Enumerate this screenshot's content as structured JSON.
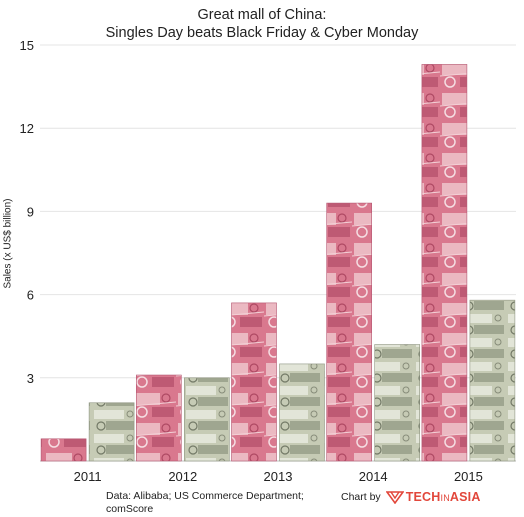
{
  "chart_data": {
    "type": "bar",
    "title_line1": "Great mall of China:",
    "title_line2": "Singles Day beats Black Friday & Cyber Monday",
    "ylabel": "Sales (x US$ billion)",
    "xlabel": "",
    "ylim": [
      0,
      15
    ],
    "yticks": [
      3,
      6,
      9,
      12,
      15
    ],
    "grid": true,
    "categories": [
      "2011",
      "2012",
      "2013",
      "2014",
      "2015"
    ],
    "series": [
      {
        "values": [
          0.8,
          3.1,
          5.7,
          9.3,
          14.3
        ],
        "fill": "yuan"
      },
      {
        "values": [
          2.1,
          3.0,
          3.5,
          4.2,
          5.8
        ],
        "fill": "dollar"
      }
    ],
    "colors": {
      "yuan_base": "#d9788e",
      "yuan_light": "#efc4cc",
      "yuan_dark": "#a8425e",
      "dollar_base": "#c6cbb5",
      "dollar_light": "#e6e8dc",
      "dollar_dark": "#7f8670"
    }
  },
  "footer": {
    "source_line1": "Data: Alibaba; US Commerce Department;",
    "source_line2": "comScore",
    "credit": "Chart by",
    "logo_bold": "TECH",
    "logo_thin": "IN",
    "logo_end": "ASIA"
  }
}
